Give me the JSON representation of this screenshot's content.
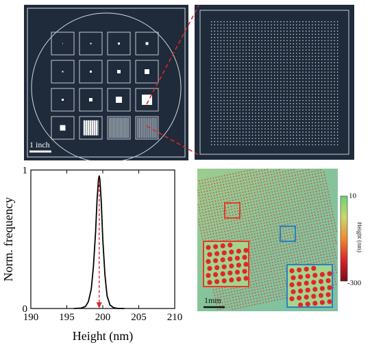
{
  "figure": {
    "wafer_panel": {
      "scale_bar_label": "1 inch",
      "grid_rows": 4,
      "grid_cols": 4,
      "background": "#1f2a3a",
      "line_color": "#d6dde6"
    },
    "zoom_panel": {
      "background": "#1f2a3a",
      "dot_color": "#e8ecf2",
      "connector_color": "#e0261f"
    },
    "map_panel": {
      "scale_bar_label": "1mm",
      "colorbar": {
        "max_label": "10",
        "min_label": "-300",
        "title": "Height (nm)"
      },
      "box_colors": {
        "red": "#e53a2b",
        "blue": "#2a7fc6"
      },
      "background": "#8fc59a"
    }
  },
  "chart_data": {
    "type": "line",
    "title": "",
    "xlabel": "Height (nm)",
    "ylabel": "Norm. frequency",
    "xlim": [
      190,
      210
    ],
    "ylim": [
      0,
      1
    ],
    "x_ticks": [
      "190",
      "195",
      "200",
      "205",
      "210"
    ],
    "y_ticks": [
      "0",
      "1"
    ],
    "series": [
      {
        "x": [
          196,
          197,
          197.6,
          198.0,
          198.4,
          198.7,
          199.0,
          199.2,
          199.4,
          199.5,
          199.6,
          199.8,
          200.0,
          200.3,
          200.6,
          201.0,
          201.5,
          202,
          203
        ],
        "y": [
          0,
          0.003,
          0.015,
          0.05,
          0.14,
          0.3,
          0.55,
          0.78,
          0.93,
          0.96,
          0.93,
          0.76,
          0.5,
          0.24,
          0.09,
          0.025,
          0.006,
          0.001,
          0
        ]
      }
    ],
    "annotations": [
      {
        "type": "arrow",
        "x": 199.5,
        "from_y": 0.93,
        "to_y": 0,
        "style": "dashed",
        "color": "#e0261f"
      }
    ]
  }
}
